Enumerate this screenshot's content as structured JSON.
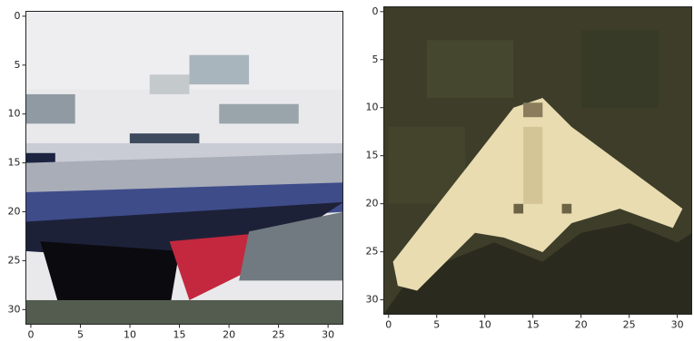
{
  "panels": [
    {
      "xlim": [
        -0.5,
        31.5
      ],
      "ylim": [
        31.5,
        -0.5
      ],
      "xticks": [
        0,
        5,
        10,
        15,
        20,
        25,
        30
      ],
      "yticks": [
        0,
        5,
        10,
        15,
        20,
        25,
        30
      ]
    },
    {
      "xlim": [
        -0.5,
        31.5
      ],
      "ylim": [
        31.5,
        -0.5
      ],
      "xticks": [
        0,
        5,
        10,
        15,
        20,
        25,
        30
      ],
      "yticks": [
        0,
        5,
        10,
        15,
        20,
        25,
        30
      ]
    }
  ]
}
